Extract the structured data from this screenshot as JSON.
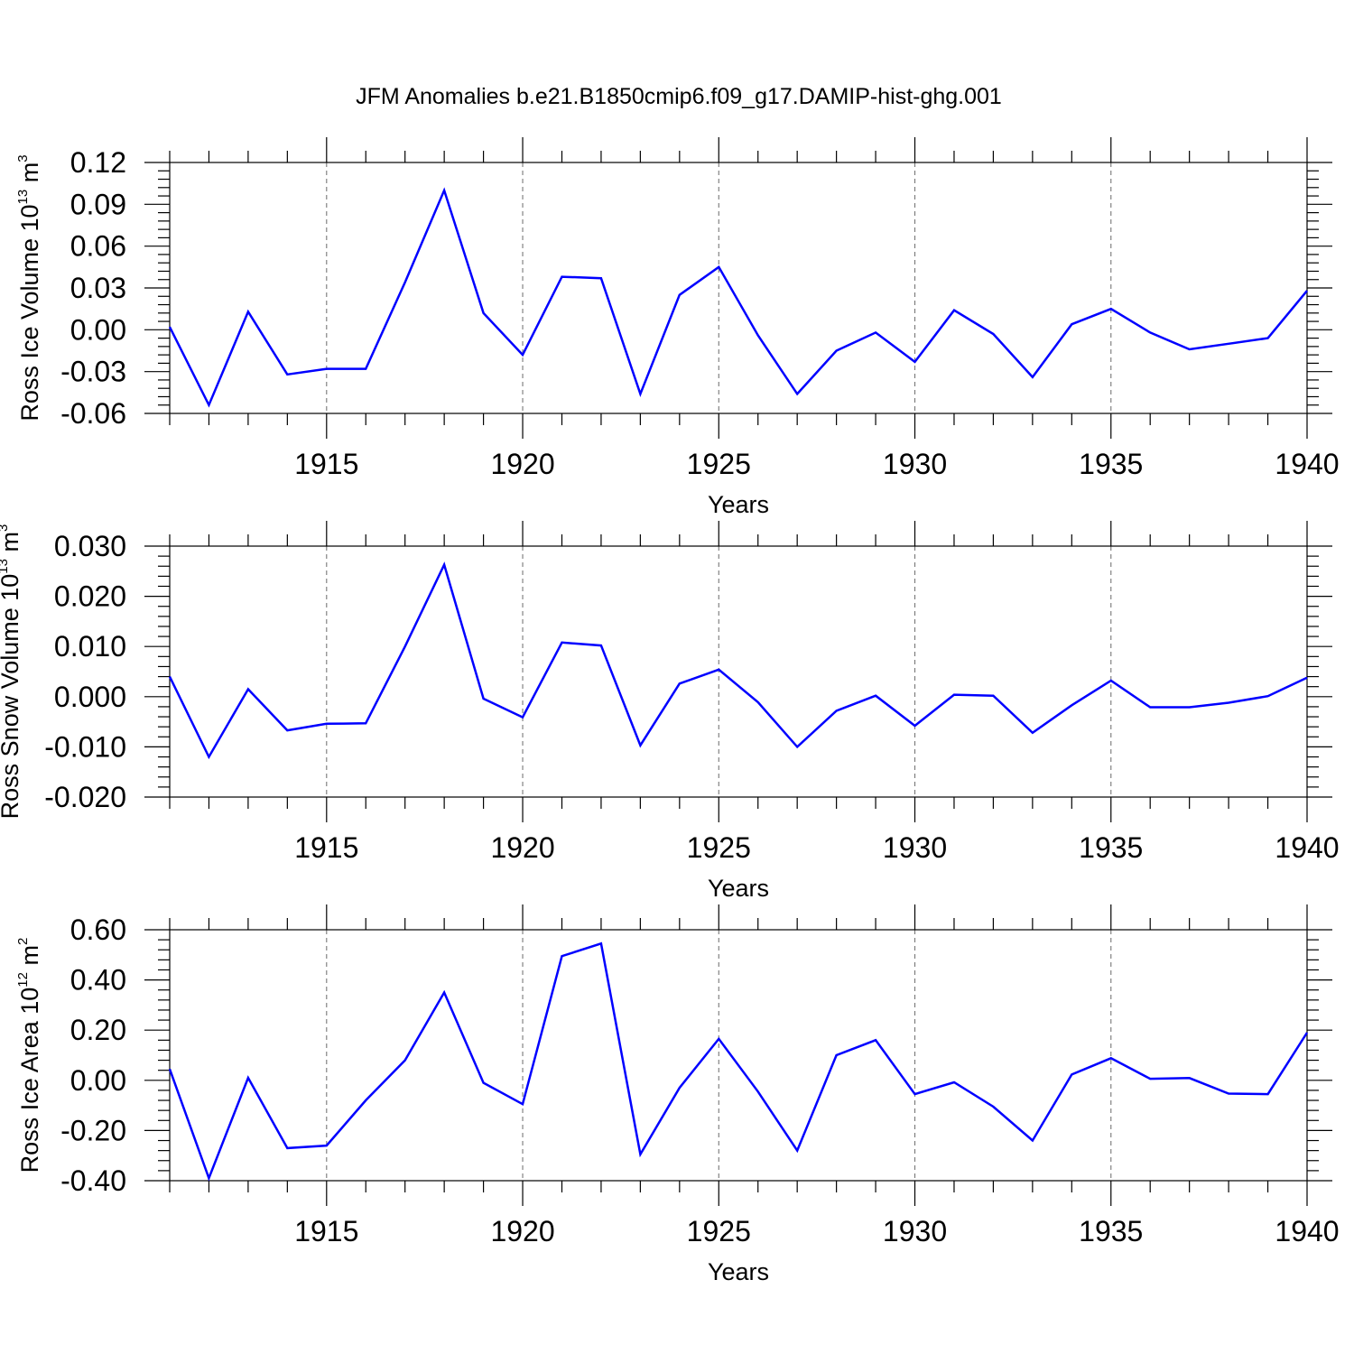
{
  "title": "JFM Anomalies b.e21.B1850cmip6.f09_g17.DAMIP-hist-ghg.001",
  "colors": {
    "series": "#0000ff",
    "grid": "#777777",
    "axis": "#000000"
  },
  "chart_data": [
    {
      "type": "line",
      "xlabel": "Years",
      "ylabel": {
        "text": "Ross Ice Volume 10",
        "sup": "13",
        "text2": " m",
        "sup2": "3"
      },
      "x": [
        1911,
        1912,
        1913,
        1914,
        1915,
        1916,
        1917,
        1918,
        1919,
        1920,
        1921,
        1922,
        1923,
        1924,
        1925,
        1926,
        1927,
        1928,
        1929,
        1930,
        1931,
        1932,
        1933,
        1934,
        1935,
        1936,
        1937,
        1938,
        1939,
        1940
      ],
      "xlim": [
        1911,
        1940
      ],
      "xticks": [
        1915,
        1920,
        1925,
        1930,
        1935,
        1940
      ],
      "ylim": [
        -0.06,
        0.12
      ],
      "yticks": [
        "0.12",
        "0.09",
        "0.06",
        "0.03",
        "0.00",
        "-0.03",
        "-0.06"
      ],
      "grid": "vertical dashed at major x ticks",
      "series": [
        {
          "values": [
            0.002,
            -0.054,
            0.013,
            -0.032,
            -0.028,
            -0.028,
            0.034,
            0.1,
            0.012,
            -0.018,
            0.038,
            0.037,
            -0.046,
            0.025,
            0.045,
            -0.004,
            -0.046,
            -0.015,
            -0.002,
            -0.023,
            0.014,
            -0.003,
            -0.034,
            0.004,
            0.015,
            -0.002,
            -0.014,
            -0.01,
            -0.006,
            0.028
          ]
        }
      ]
    },
    {
      "type": "line",
      "xlabel": "Years",
      "ylabel": {
        "text": "Ross Snow Volume 10",
        "sup": "13",
        "text2": " m",
        "sup2": "3"
      },
      "x": [
        1911,
        1912,
        1913,
        1914,
        1915,
        1916,
        1917,
        1918,
        1919,
        1920,
        1921,
        1922,
        1923,
        1924,
        1925,
        1926,
        1927,
        1928,
        1929,
        1930,
        1931,
        1932,
        1933,
        1934,
        1935,
        1936,
        1937,
        1938,
        1939,
        1940
      ],
      "xlim": [
        1911,
        1940
      ],
      "xticks": [
        1915,
        1920,
        1925,
        1930,
        1935,
        1940
      ],
      "ylim": [
        -0.02,
        0.03
      ],
      "yticks": [
        "0.030",
        "0.020",
        "0.010",
        "0.000",
        "-0.010",
        "-0.020"
      ],
      "grid": "vertical dashed at major x ticks",
      "series": [
        {
          "values": [
            0.004,
            -0.012,
            0.0015,
            -0.0067,
            -0.0054,
            -0.0053,
            0.01,
            0.0263,
            -0.0004,
            -0.0041,
            0.0108,
            0.0102,
            -0.0097,
            0.0026,
            0.0054,
            -0.0011,
            -0.01,
            -0.0028,
            0.0002,
            -0.0058,
            0.0004,
            0.0002,
            -0.0072,
            -0.0017,
            0.0032,
            -0.0021,
            -0.0021,
            -0.0012,
            0.0001,
            0.0038
          ]
        }
      ]
    },
    {
      "type": "line",
      "xlabel": "Years",
      "ylabel": {
        "text": "Ross Ice Area 10",
        "sup": "12",
        "text2": " m",
        "sup2": "2"
      },
      "x": [
        1911,
        1912,
        1913,
        1914,
        1915,
        1916,
        1917,
        1918,
        1919,
        1920,
        1921,
        1922,
        1923,
        1924,
        1925,
        1926,
        1927,
        1928,
        1929,
        1930,
        1931,
        1932,
        1933,
        1934,
        1935,
        1936,
        1937,
        1938,
        1939,
        1940
      ],
      "xlim": [
        1911,
        1940
      ],
      "xticks": [
        1915,
        1920,
        1925,
        1930,
        1935,
        1940
      ],
      "ylim": [
        -0.4,
        0.6
      ],
      "yticks": [
        "0.60",
        "0.40",
        "0.20",
        "0.00",
        "-0.20",
        "-0.40"
      ],
      "grid": "vertical dashed at major x ticks",
      "series": [
        {
          "values": [
            0.045,
            -0.39,
            0.01,
            -0.27,
            -0.26,
            -0.08,
            0.08,
            0.35,
            -0.01,
            -0.095,
            0.495,
            0.545,
            -0.295,
            -0.03,
            0.165,
            -0.045,
            -0.28,
            0.1,
            0.16,
            -0.055,
            -0.008,
            -0.105,
            -0.24,
            0.023,
            0.088,
            0.006,
            0.009,
            -0.053,
            -0.055,
            0.19
          ]
        }
      ]
    }
  ]
}
